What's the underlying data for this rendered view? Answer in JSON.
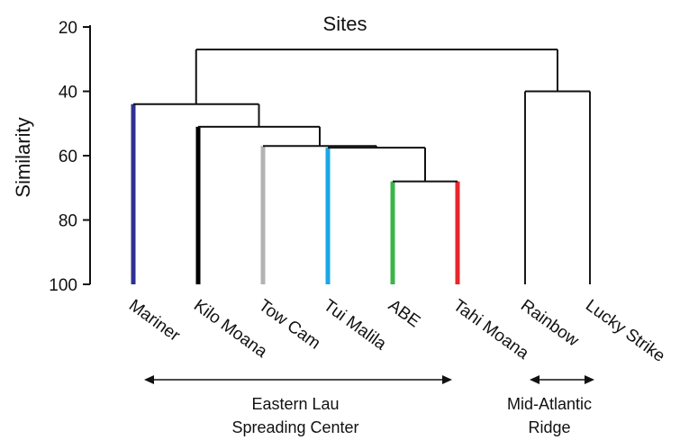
{
  "title": "Sites",
  "yaxis": {
    "label": "Similarity",
    "ticks": [
      "20",
      "40",
      "60",
      "80",
      "100"
    ]
  },
  "leaves": [
    "Mariner",
    "Kilo Moana",
    "Tow Cam",
    "Tui Malila",
    "ABE",
    "Tahi Moana",
    "Rainbow",
    "Lucky Strike"
  ],
  "groups": [
    {
      "line1": "Eastern Lau",
      "line2": "Spreading Center"
    },
    {
      "line1": "Mid-Atlantic",
      "line2": "Ridge"
    }
  ],
  "colors": {
    "mariner": "#2e3192",
    "kilo_moana": "#000000",
    "tow_cam": "#b3b3b3",
    "tui_malila": "#1ba8e6",
    "abe": "#3cb44a",
    "tahi_moana": "#e8262b",
    "rainbow": "#000000",
    "lucky_strike": "#000000"
  },
  "chart_data": {
    "type": "dendrogram",
    "title": "Sites",
    "ylabel": "Similarity",
    "ylim": [
      20,
      100
    ],
    "leaves": [
      "Mariner",
      "Kilo Moana",
      "Tow Cam",
      "Tui Malila",
      "ABE",
      "Tahi Moana",
      "Rainbow",
      "Lucky Strike"
    ],
    "merges": [
      {
        "members": [
          "ABE",
          "Tahi Moana"
        ],
        "similarity": 68
      },
      {
        "members": [
          "Tui Malila",
          "ABE+Tahi Moana"
        ],
        "similarity": 57.5
      },
      {
        "members": [
          "Tow Cam",
          "Tui Malila+ABE+Tahi Moana"
        ],
        "similarity": 57
      },
      {
        "members": [
          "Kilo Moana",
          "Tow Cam cluster"
        ],
        "similarity": 51
      },
      {
        "members": [
          "Mariner",
          "Kilo Moana cluster"
        ],
        "similarity": 44
      },
      {
        "members": [
          "Rainbow",
          "Lucky Strike"
        ],
        "similarity": 40
      },
      {
        "members": [
          "Eastern Lau cluster",
          "Mid-Atlantic cluster"
        ],
        "similarity": 27
      }
    ]
  }
}
